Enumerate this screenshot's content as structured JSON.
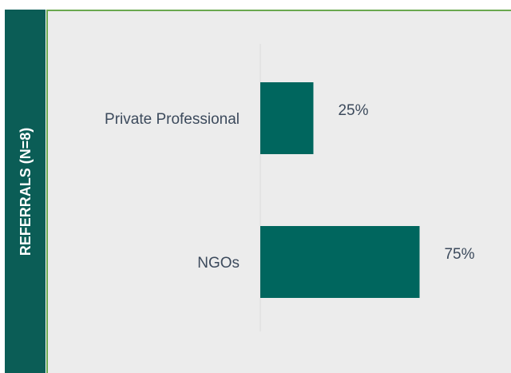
{
  "chart_data": {
    "type": "bar",
    "orientation": "horizontal",
    "title": "REFERRALS (N=8)",
    "categories": [
      "Private Professional",
      "NGOs"
    ],
    "values": [
      25,
      75
    ],
    "value_labels": [
      "25%",
      "75%"
    ],
    "color": "#00665e",
    "xlim": [
      0,
      100
    ]
  }
}
